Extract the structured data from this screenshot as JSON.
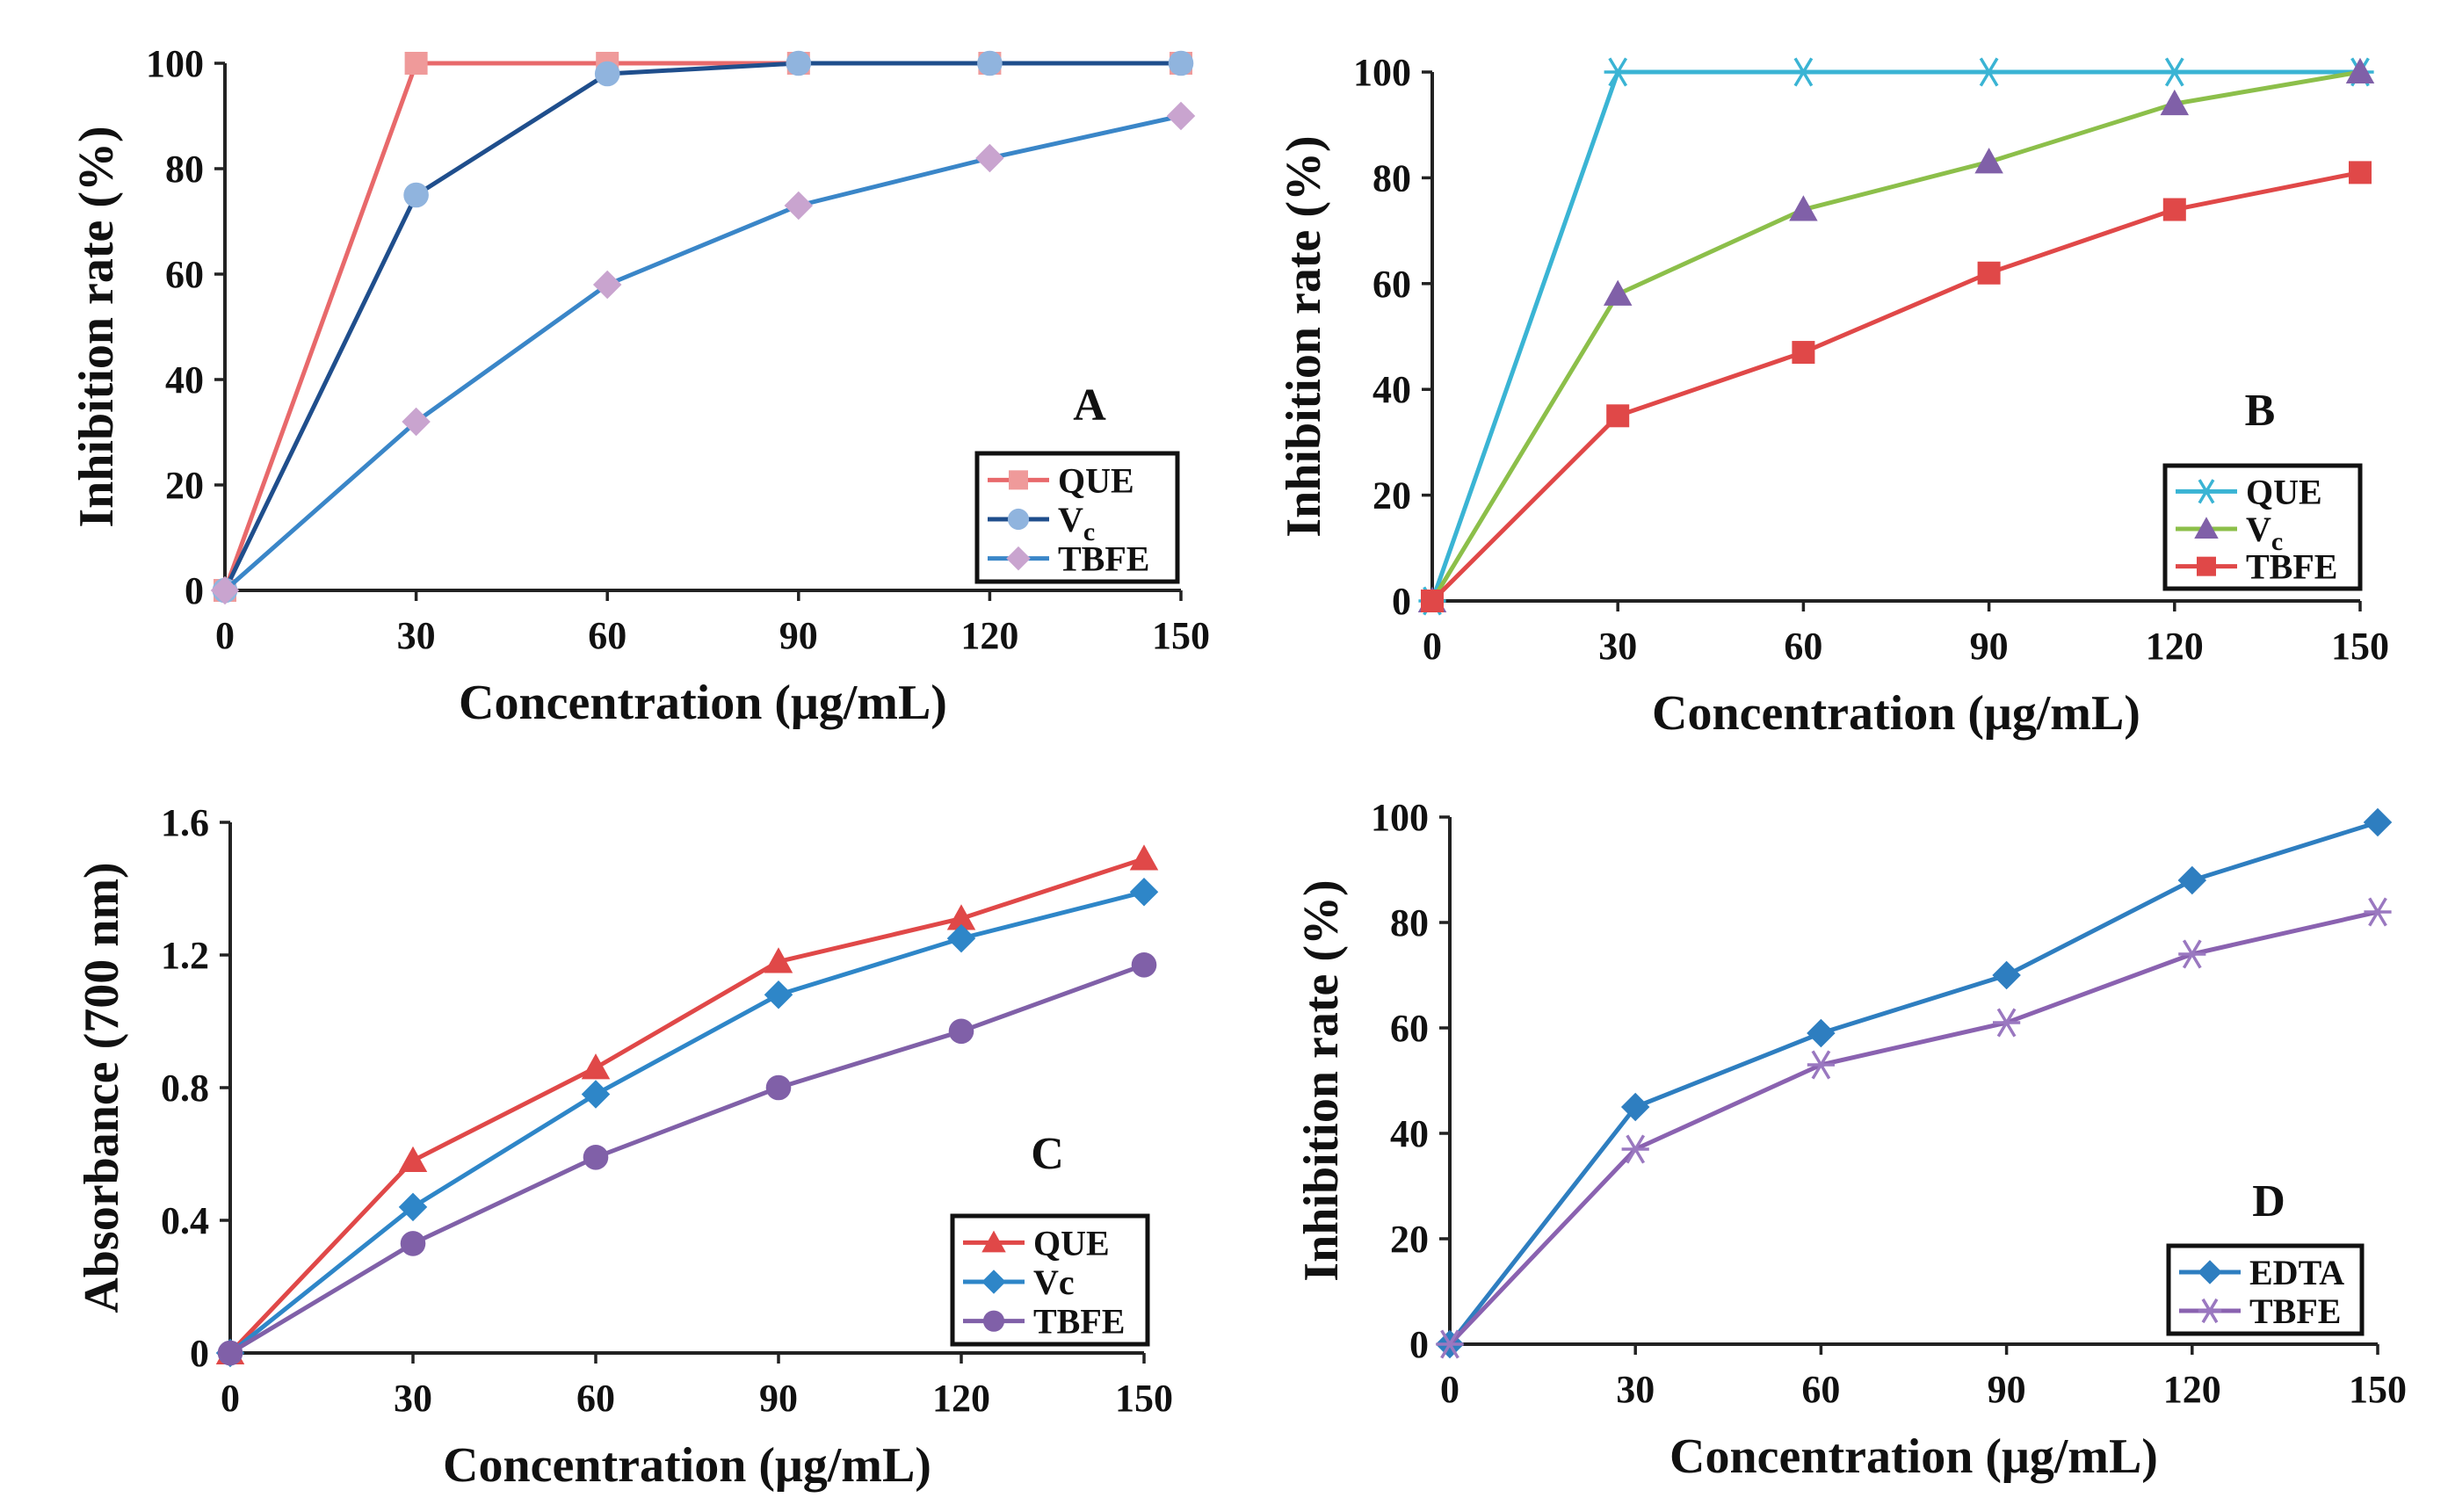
{
  "figure": {
    "description_label": "Four-panel antioxidant activity figure"
  },
  "chart_data": [
    {
      "panel": "A",
      "type": "line",
      "xlabel": "Concentration (μg/mL)",
      "ylabel": "Inhibition rate (%)",
      "x": [
        0,
        30,
        60,
        90,
        120,
        150
      ],
      "xticks": [
        "0",
        "30",
        "60",
        "90",
        "120",
        "150"
      ],
      "yticks": [
        "0",
        "20",
        "40",
        "60",
        "80",
        "100"
      ],
      "xlim": [
        0,
        150
      ],
      "ylim": [
        0,
        100
      ],
      "ytick_values": [
        0,
        20,
        40,
        60,
        80,
        100
      ],
      "legend_position": "bottom-right",
      "series": [
        {
          "name": "QUE",
          "sub": "",
          "color": "#e8696b",
          "marker": "square",
          "marker_color": "#ef9a9a",
          "values": [
            0,
            100,
            100,
            100,
            100,
            100
          ]
        },
        {
          "name": "V",
          "sub": "c",
          "color": "#1f4e8c",
          "marker": "circle",
          "marker_color": "#90b4de",
          "values": [
            0,
            75,
            98,
            100,
            100,
            100
          ]
        },
        {
          "name": "TBFE",
          "sub": "",
          "color": "#3a86c8",
          "marker": "diamond",
          "marker_color": "#c9a4cf",
          "values": [
            0,
            32,
            58,
            73,
            82,
            90
          ]
        }
      ]
    },
    {
      "panel": "B",
      "type": "line",
      "xlabel": "Concentration (μg/mL)",
      "ylabel": "Inhibition rate (%)",
      "x": [
        0,
        30,
        60,
        90,
        120,
        150
      ],
      "xticks": [
        "0",
        "30",
        "60",
        "90",
        "120",
        "150"
      ],
      "yticks": [
        "0",
        "20",
        "40",
        "60",
        "80",
        "100"
      ],
      "xlim": [
        0,
        150
      ],
      "ylim": [
        0,
        100
      ],
      "ytick_values": [
        0,
        20,
        40,
        60,
        80,
        100
      ],
      "legend_position": "bottom-right",
      "series": [
        {
          "name": "QUE",
          "sub": "",
          "color": "#3ab4d4",
          "marker": "asterisk",
          "marker_color": "#3ab4d4",
          "values": [
            0,
            100,
            100,
            100,
            100,
            100
          ]
        },
        {
          "name": "V",
          "sub": "c",
          "color": "#8cbf4a",
          "marker": "triangle",
          "marker_color": "#8060a8",
          "values": [
            0,
            58,
            74,
            83,
            94,
            100
          ]
        },
        {
          "name": "TBFE",
          "sub": "",
          "color": "#e04848",
          "marker": "square",
          "marker_color": "#e04848",
          "values": [
            0,
            35,
            47,
            62,
            74,
            81
          ]
        }
      ]
    },
    {
      "panel": "C",
      "type": "line",
      "xlabel": "Concentration (μg/mL)",
      "ylabel": "Absorbance (700 nm)",
      "x": [
        0,
        30,
        60,
        90,
        120,
        150
      ],
      "xticks": [
        "0",
        "30",
        "60",
        "90",
        "120",
        "150"
      ],
      "yticks": [
        "0",
        "0.4",
        "0.8",
        "1.2",
        "1.6"
      ],
      "xlim": [
        0,
        150
      ],
      "ylim": [
        0,
        1.6
      ],
      "ytick_values": [
        0,
        0.4,
        0.8,
        1.2,
        1.6
      ],
      "legend_position": "bottom-right",
      "series": [
        {
          "name": "QUE",
          "sub": "",
          "color": "#e04848",
          "marker": "triangle",
          "marker_color": "#e04848",
          "values": [
            0,
            0.58,
            0.86,
            1.18,
            1.31,
            1.49
          ]
        },
        {
          "name": "Vc",
          "sub": "",
          "color": "#2e86c8",
          "marker": "diamond",
          "marker_color": "#2e86c8",
          "values": [
            0,
            0.44,
            0.78,
            1.08,
            1.25,
            1.39
          ]
        },
        {
          "name": "TBFE",
          "sub": "",
          "color": "#8060a8",
          "marker": "circle",
          "marker_color": "#8060a8",
          "values": [
            0,
            0.33,
            0.59,
            0.8,
            0.97,
            1.17
          ]
        }
      ]
    },
    {
      "panel": "D",
      "type": "line",
      "xlabel": "Concentration (μg/mL)",
      "ylabel": "Inhibition rate (%)",
      "x": [
        0,
        30,
        60,
        90,
        120,
        150
      ],
      "xticks": [
        "0",
        "30",
        "60",
        "90",
        "120",
        "150"
      ],
      "yticks": [
        "0",
        "20",
        "40",
        "60",
        "80",
        "100"
      ],
      "xlim": [
        0,
        150
      ],
      "ylim": [
        0,
        100
      ],
      "ytick_values": [
        0,
        20,
        40,
        60,
        80,
        100
      ],
      "legend_position": "bottom-right",
      "series": [
        {
          "name": "EDTA",
          "sub": "",
          "color": "#2e7ec0",
          "marker": "diamond",
          "marker_color": "#2e7ec0",
          "values": [
            0,
            45,
            59,
            70,
            88,
            99
          ]
        },
        {
          "name": "TBFE",
          "sub": "",
          "color": "#8a62b0",
          "marker": "asterisk",
          "marker_color": "#9a78c0",
          "values": [
            0,
            37,
            53,
            61,
            74,
            82
          ]
        }
      ]
    }
  ]
}
